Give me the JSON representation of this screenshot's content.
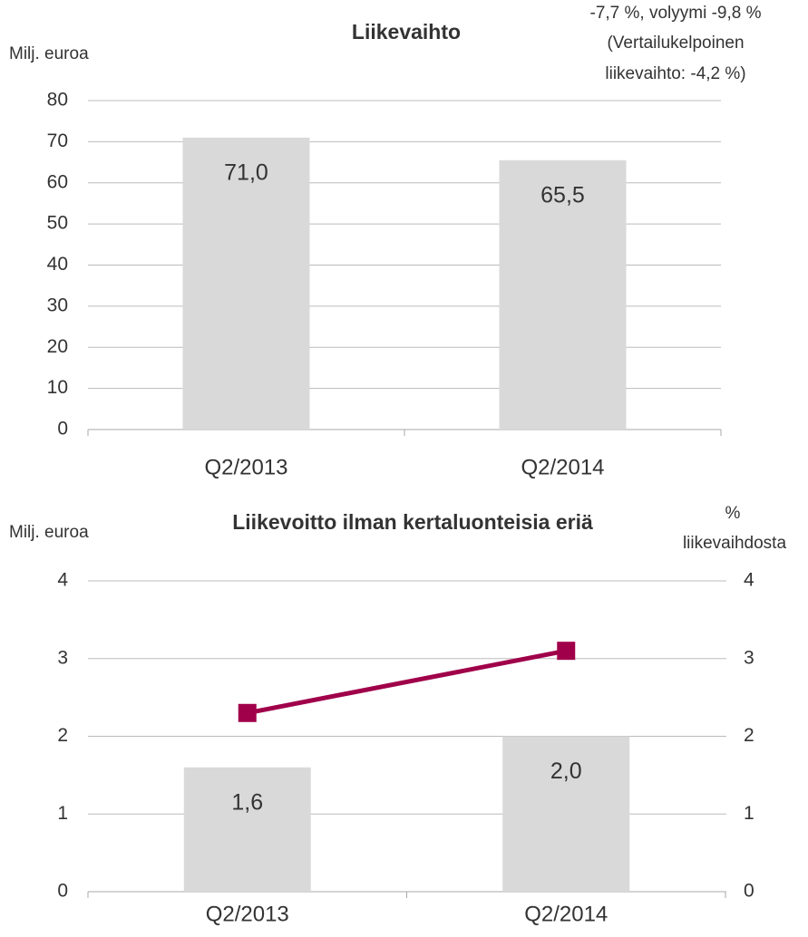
{
  "chart_data": [
    {
      "type": "bar",
      "title": "Liikevaihto",
      "y_label": "Milj. euroa",
      "annotation": [
        "-7,7 %, volyymi -9,8 %",
        "(Vertailukelpoinen",
        "liikevaihto: -4,2 %)"
      ],
      "categories": [
        "Q2/2013",
        "Q2/2014"
      ],
      "series": [
        {
          "type": "bar",
          "color": "#d9d9d9",
          "values": [
            71.0,
            65.5
          ],
          "value_labels": [
            "71,0",
            "65,5"
          ]
        }
      ],
      "ylim": [
        0,
        80
      ],
      "yticks": [
        0,
        10,
        20,
        30,
        40,
        50,
        60,
        70,
        80
      ],
      "grid": true
    },
    {
      "type": "bar",
      "title": "Liikevoitto ilman kertaluonteisia eriä",
      "y_label": "Milj. euroa",
      "y2_label": [
        "%",
        "liikevaihdosta"
      ],
      "categories": [
        "Q2/2013",
        "Q2/2014"
      ],
      "series": [
        {
          "type": "bar",
          "color": "#d9d9d9",
          "values": [
            1.6,
            2.0
          ],
          "value_labels": [
            "1,6",
            "2,0"
          ]
        },
        {
          "type": "line",
          "color": "#a0004a",
          "axis": "y2",
          "values": [
            2.3,
            3.1
          ]
        }
      ],
      "ylim": [
        0,
        4
      ],
      "yticks": [
        0,
        1,
        2,
        3,
        4
      ],
      "y2lim": [
        0,
        4
      ],
      "y2ticks": [
        0,
        1,
        2,
        3,
        4
      ],
      "grid": true
    }
  ]
}
